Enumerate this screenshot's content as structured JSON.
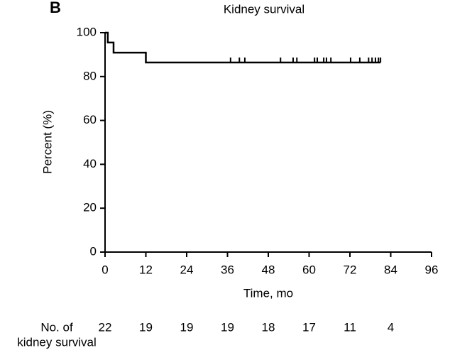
{
  "chart_data": {
    "type": "step",
    "panel_label": "B",
    "title": "Kidney survival",
    "xlabel": "Time, mo",
    "ylabel": "Percent (%)",
    "xlim": [
      0,
      96
    ],
    "xticks": [
      0,
      12,
      24,
      36,
      48,
      60,
      72,
      84,
      96
    ],
    "ylim": [
      0,
      100
    ],
    "yticks": [
      0,
      20,
      40,
      60,
      80,
      100
    ],
    "color": "#000000",
    "series": [
      {
        "x": [
          0,
          0.8,
          2.5,
          12,
          81
        ],
        "values": [
          100,
          95.5,
          90.9,
          86.4,
          86.4
        ]
      }
    ],
    "censored": {
      "x": [
        36.9,
        39.5,
        41.1,
        51.6,
        55.3,
        56.4,
        61.6,
        62.4,
        64.3,
        65.1,
        66.4,
        72.2,
        74.9,
        77.5,
        78.5,
        79.5,
        80.4,
        81
      ],
      "values": [
        86.4,
        86.4,
        86.4,
        86.4,
        86.4,
        86.4,
        86.4,
        86.4,
        86.4,
        86.4,
        86.4,
        86.4,
        86.4,
        86.4,
        86.4,
        86.4,
        86.4,
        86.4
      ]
    },
    "risk_table": {
      "label_lines": [
        "No. of",
        "kidney survival"
      ],
      "values": [
        22,
        19,
        19,
        19,
        18,
        17,
        11,
        4
      ]
    }
  }
}
